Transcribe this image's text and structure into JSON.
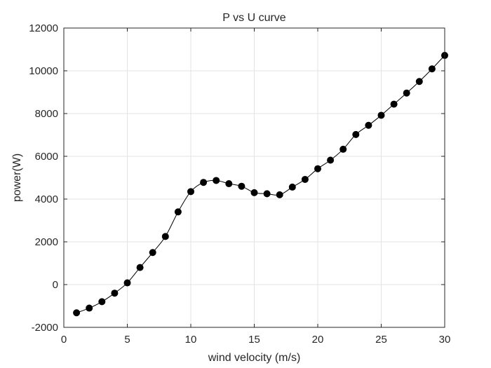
{
  "chart_data": {
    "type": "line",
    "title": "P vs U curve",
    "xlabel": "wind velocity (m/s)",
    "ylabel": "power(W)",
    "xlim": [
      0,
      30
    ],
    "ylim": [
      -2000,
      12000
    ],
    "xticks": [
      0,
      5,
      10,
      15,
      20,
      25,
      30
    ],
    "yticks": [
      -2000,
      0,
      2000,
      4000,
      6000,
      8000,
      10000,
      12000
    ],
    "grid": true,
    "marker": "filled-circle",
    "line_color": "#000000",
    "series": [
      {
        "x": [
          1,
          2,
          3,
          4,
          5,
          6,
          7,
          8,
          9,
          10,
          11,
          12,
          13,
          14,
          15,
          16,
          17,
          18,
          19,
          20,
          21,
          22,
          23,
          24,
          25,
          26,
          27,
          28,
          29,
          30
        ],
        "values": [
          -1320,
          -1100,
          -800,
          -400,
          80,
          800,
          1500,
          2250,
          3400,
          4350,
          4780,
          4870,
          4720,
          4600,
          4300,
          4250,
          4200,
          4560,
          4920,
          5420,
          5820,
          6330,
          7020,
          7450,
          7920,
          8440,
          8960,
          9500,
          10090,
          10720
        ]
      }
    ]
  }
}
